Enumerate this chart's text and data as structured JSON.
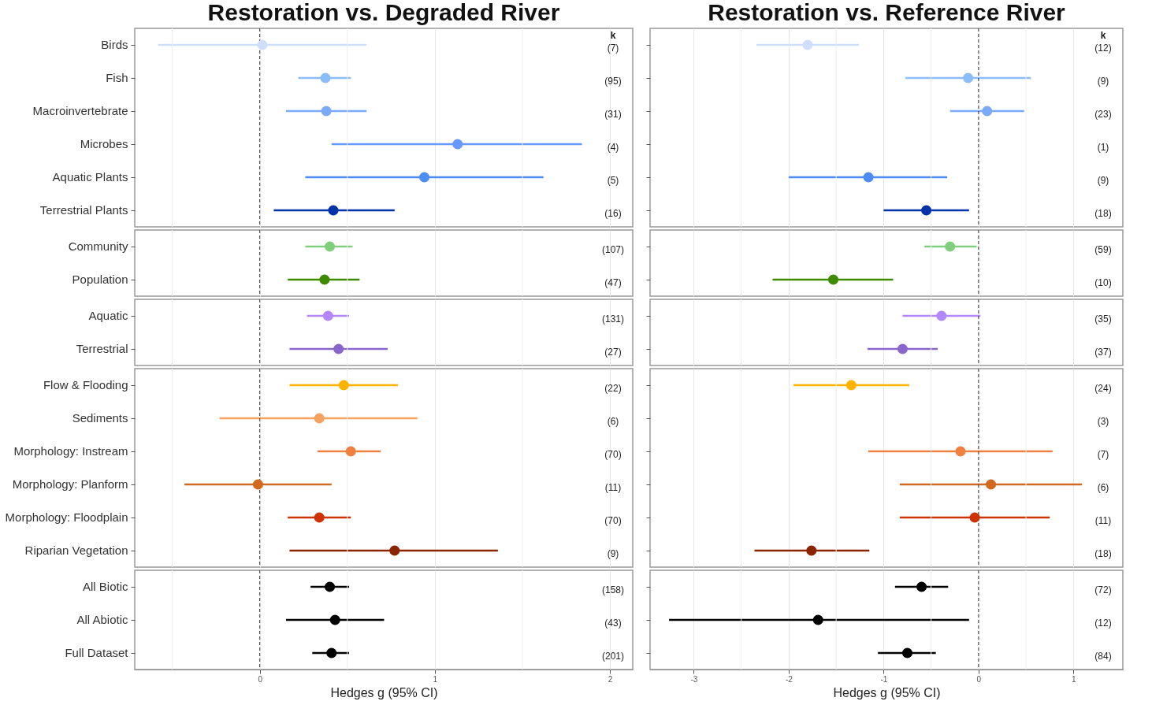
{
  "chart_data": [
    {
      "type": "scatter",
      "orientation": "horizontal",
      "title": "Restoration vs. Degraded River",
      "tick_labels": "y",
      "categories": [
        "Birds",
        "Fish",
        "Macroinvertebrate",
        "Microbes",
        "Aquatic Plants",
        "Terrestrial Plants"
      ],
      "values": [
        0.015,
        0.375,
        0.38,
        1.13,
        0.94,
        0.42
      ],
      "errors": [
        [
          -0.58,
          0.61
        ],
        [
          0.22,
          0.52
        ],
        [
          0.15,
          0.61
        ],
        [
          0.41,
          1.84
        ],
        [
          0.26,
          1.62
        ],
        [
          0.08,
          0.77
        ]
      ],
      "colors": [
        "#cfdffb",
        "#8dbdf8",
        "#7aaaf9",
        "#6699ff",
        "#4d8bf5",
        "#0033aa"
      ],
      "xlim": [
        -0.714,
        2.13
      ],
      "xticks": [
        {
          "value": -0.5,
          "label": null
        },
        0,
        {
          "value": 0.5,
          "label": null
        },
        1,
        {
          "value": 1.5,
          "label": null
        },
        2
      ],
      "grid": "x",
      "marker": "circle",
      "ref_lines": [
        {
          "axis": "x",
          "value": 0,
          "label": null,
          "color": "#333333",
          "line_style": "dashed"
        }
      ],
      "annotations": [
        "k",
        "(7)",
        "(95)",
        "(31)",
        "(4)",
        "(5)",
        "(16)"
      ]
    },
    {
      "type": "scatter",
      "orientation": "horizontal",
      "tick_labels": "y",
      "categories": [
        "Community",
        "Population"
      ],
      "values": [
        0.4,
        0.37
      ],
      "errors": [
        [
          0.26,
          0.53
        ],
        [
          0.16,
          0.57
        ]
      ],
      "colors": [
        "#7fcf7f",
        "#3f8a00"
      ],
      "xlim": [
        -0.714,
        2.13
      ],
      "xticks": [
        {
          "value": -0.5,
          "label": null
        },
        0,
        {
          "value": 0.5,
          "label": null
        },
        1,
        {
          "value": 1.5,
          "label": null
        },
        2
      ],
      "grid": "x",
      "marker": "circle",
      "ref_lines": [
        {
          "axis": "x",
          "value": 0,
          "label": null,
          "color": "#333333",
          "line_style": "dashed"
        }
      ],
      "annotations": [
        "(107)",
        "(47)"
      ]
    },
    {
      "type": "scatter",
      "orientation": "horizontal",
      "tick_labels": "y",
      "categories": [
        "Aquatic",
        "Terrestrial"
      ],
      "values": [
        0.39,
        0.45
      ],
      "errors": [
        [
          0.27,
          0.51
        ],
        [
          0.17,
          0.73
        ]
      ],
      "colors": [
        "#b388ff",
        "#8866cc"
      ],
      "xlim": [
        -0.714,
        2.13
      ],
      "xticks": [
        {
          "value": -0.5,
          "label": null
        },
        0,
        {
          "value": 0.5,
          "label": null
        },
        1,
        {
          "value": 1.5,
          "label": null
        },
        2
      ],
      "grid": "x",
      "marker": "circle",
      "ref_lines": [
        {
          "axis": "x",
          "value": 0,
          "label": null,
          "color": "#333333",
          "line_style": "dashed"
        }
      ],
      "annotations": [
        "(131)",
        "(27)"
      ]
    },
    {
      "type": "scatter",
      "orientation": "horizontal",
      "tick_labels": "y",
      "categories": [
        "Flow & Flooding",
        "Sediments",
        "Morphology: Instream",
        "Morphology: Planform",
        "Morphology: Floodplain",
        "Riparian Vegetation"
      ],
      "values": [
        0.48,
        0.34,
        0.52,
        -0.01,
        0.34,
        0.77
      ],
      "errors": [
        [
          0.17,
          0.79
        ],
        [
          -0.23,
          0.9
        ],
        [
          0.33,
          0.69
        ],
        [
          -0.43,
          0.41
        ],
        [
          0.16,
          0.52
        ],
        [
          0.17,
          1.36
        ]
      ],
      "colors": [
        "#ffb300",
        "#f4a460",
        "#f08040",
        "#d2691e",
        "#cc3300",
        "#8b2500"
      ],
      "xlim": [
        -0.714,
        2.13
      ],
      "xticks": [
        {
          "value": -0.5,
          "label": null
        },
        0,
        {
          "value": 0.5,
          "label": null
        },
        1,
        {
          "value": 1.5,
          "label": null
        },
        2
      ],
      "grid": "x",
      "marker": "circle",
      "ref_lines": [
        {
          "axis": "x",
          "value": 0,
          "label": null,
          "color": "#333333",
          "line_style": "dashed"
        }
      ],
      "annotations": [
        "(22)",
        "(6)",
        "(70)",
        "(11)",
        "(70)",
        "(9)"
      ]
    },
    {
      "type": "scatter",
      "orientation": "horizontal",
      "xlabel": "Hedges g (95% CI)",
      "categories": [
        "All Biotic",
        "All Abiotic",
        "Full Dataset"
      ],
      "values": [
        0.4,
        0.43,
        0.41
      ],
      "errors": [
        [
          0.29,
          0.51
        ],
        [
          0.15,
          0.71
        ],
        [
          0.3,
          0.51
        ]
      ],
      "colors": [
        "#000000",
        "#000000",
        "#000000"
      ],
      "xlim": [
        -0.714,
        2.13
      ],
      "xticks": [
        {
          "value": -0.5,
          "label": null
        },
        0,
        {
          "value": 0.5,
          "label": null
        },
        1,
        {
          "value": 1.5,
          "label": null
        },
        2
      ],
      "grid": "x",
      "marker": "circle",
      "ref_lines": [
        {
          "axis": "x",
          "value": 0,
          "label": null,
          "color": "#333333",
          "line_style": "dashed"
        }
      ],
      "annotations": [
        "(158)",
        "(43)",
        "(201)"
      ]
    },
    {
      "type": "scatter",
      "orientation": "horizontal",
      "title": "Restoration vs. Reference River",
      "tick_labels": false,
      "categories": [
        null,
        null,
        null,
        null,
        null,
        null
      ],
      "values": [
        -1.8,
        -0.11,
        0.09,
        null,
        -1.16,
        -0.55
      ],
      "errors": [
        [
          -2.34,
          -1.26
        ],
        [
          -0.77,
          0.55
        ],
        [
          -0.3,
          0.48
        ],
        null,
        [
          -2.0,
          -0.33
        ],
        [
          -1.0,
          -0.1
        ]
      ],
      "colors": [
        "#cfdffb",
        "#8dbdf8",
        "#7aaaf9",
        "#6699ff",
        "#4d8bf5",
        "#0033aa"
      ],
      "xlim": [
        -3.46,
        1.52
      ],
      "xticks": [
        -3,
        {
          "value": -2.5,
          "label": null
        },
        -2,
        {
          "value": -1.5,
          "label": null
        },
        -1,
        {
          "value": -0.5,
          "label": null
        },
        0,
        {
          "value": 0.5,
          "label": null
        },
        1
      ],
      "grid": "x",
      "marker": "circle",
      "ref_lines": [
        {
          "axis": "x",
          "value": 0,
          "label": null,
          "color": "#333333",
          "line_style": "dashed"
        }
      ],
      "annotations": [
        "k",
        "(12)",
        "(9)",
        "(23)",
        "(1)",
        "(9)",
        "(18)"
      ]
    },
    {
      "type": "scatter",
      "orientation": "horizontal",
      "tick_labels": false,
      "categories": [
        null,
        null
      ],
      "values": [
        -0.3,
        -1.53
      ],
      "errors": [
        [
          -0.57,
          -0.02
        ],
        [
          -2.17,
          -0.9
        ]
      ],
      "colors": [
        "#7fcf7f",
        "#3f8a00"
      ],
      "xlim": [
        -3.46,
        1.52
      ],
      "xticks": [
        -3,
        {
          "value": -2.5,
          "label": null
        },
        -2,
        {
          "value": -1.5,
          "label": null
        },
        -1,
        {
          "value": -0.5,
          "label": null
        },
        0,
        {
          "value": 0.5,
          "label": null
        },
        1
      ],
      "grid": "x",
      "marker": "circle",
      "ref_lines": [
        {
          "axis": "x",
          "value": 0,
          "label": null,
          "color": "#333333",
          "line_style": "dashed"
        }
      ],
      "annotations": [
        "(59)",
        "(10)"
      ]
    },
    {
      "type": "scatter",
      "orientation": "horizontal",
      "tick_labels": false,
      "categories": [
        null,
        null
      ],
      "values": [
        -0.39,
        -0.8
      ],
      "errors": [
        [
          -0.8,
          0.02
        ],
        [
          -1.17,
          -0.43
        ]
      ],
      "colors": [
        "#b388ff",
        "#8866cc"
      ],
      "xlim": [
        -3.46,
        1.52
      ],
      "xticks": [
        -3,
        {
          "value": -2.5,
          "label": null
        },
        -2,
        {
          "value": -1.5,
          "label": null
        },
        -1,
        {
          "value": -0.5,
          "label": null
        },
        0,
        {
          "value": 0.5,
          "label": null
        },
        1
      ],
      "grid": "x",
      "marker": "circle",
      "ref_lines": [
        {
          "axis": "x",
          "value": 0,
          "label": null,
          "color": "#333333",
          "line_style": "dashed"
        }
      ],
      "annotations": [
        "(35)",
        "(37)"
      ]
    },
    {
      "type": "scatter",
      "orientation": "horizontal",
      "tick_labels": false,
      "categories": [
        null,
        null,
        null,
        null,
        null,
        null
      ],
      "values": [
        -1.34,
        null,
        -0.19,
        0.13,
        -0.04,
        -1.76
      ],
      "errors": [
        [
          -1.95,
          -0.73
        ],
        null,
        [
          -1.16,
          0.78
        ],
        [
          -0.83,
          1.09
        ],
        [
          -0.83,
          0.75
        ],
        [
          -2.36,
          -1.15
        ]
      ],
      "colors": [
        "#ffb300",
        "#f4a460",
        "#f08040",
        "#d2691e",
        "#cc3300",
        "#8b2500"
      ],
      "xlim": [
        -3.46,
        1.52
      ],
      "xticks": [
        -3,
        {
          "value": -2.5,
          "label": null
        },
        -2,
        {
          "value": -1.5,
          "label": null
        },
        -1,
        {
          "value": -0.5,
          "label": null
        },
        0,
        {
          "value": 0.5,
          "label": null
        },
        1
      ],
      "grid": "x",
      "marker": "circle",
      "ref_lines": [
        {
          "axis": "x",
          "value": 0,
          "label": null,
          "color": "#333333",
          "line_style": "dashed"
        }
      ],
      "annotations": [
        "(24)",
        "(3)",
        "(7)",
        "(6)",
        "(11)",
        "(18)"
      ]
    },
    {
      "type": "scatter",
      "orientation": "horizontal",
      "xlabel": "Hedges g (95% CI)",
      "tick_labels": "x",
      "categories": [
        null,
        null,
        null
      ],
      "values": [
        -0.6,
        -1.69,
        -0.75
      ],
      "errors": [
        [
          -0.88,
          -0.32
        ],
        [
          -3.26,
          -0.1
        ],
        [
          -1.06,
          -0.45
        ]
      ],
      "colors": [
        "#000000",
        "#000000",
        "#000000"
      ],
      "xlim": [
        -3.46,
        1.52
      ],
      "xticks": [
        -3,
        {
          "value": -2.5,
          "label": null
        },
        -2,
        {
          "value": -1.5,
          "label": null
        },
        -1,
        {
          "value": -0.5,
          "label": null
        },
        0,
        {
          "value": 0.5,
          "label": null
        },
        1
      ],
      "grid": "x",
      "marker": "circle",
      "ref_lines": [
        {
          "axis": "x",
          "value": 0,
          "label": null,
          "color": "#333333",
          "line_style": "dashed"
        }
      ],
      "annotations": [
        "(72)",
        "(12)",
        "(84)"
      ]
    }
  ]
}
